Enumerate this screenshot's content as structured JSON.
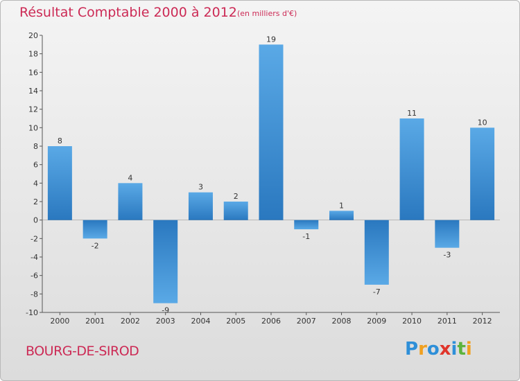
{
  "header": {
    "title": "Résultat Comptable 2000 à 2012",
    "subtitle": "(en milliers d'€)"
  },
  "footer": {
    "location": "BOURG-DE-SIROD",
    "logo_letters": [
      {
        "ch": "P",
        "color": "#2e8fd8"
      },
      {
        "ch": "r",
        "color": "#f0a020"
      },
      {
        "ch": "o",
        "color": "#2e8fd8"
      },
      {
        "ch": "x",
        "color": "#e0352b"
      },
      {
        "ch": "i",
        "color": "#2e8fd8"
      },
      {
        "ch": "t",
        "color": "#5db33c"
      },
      {
        "ch": "i",
        "color": "#f0a020"
      }
    ]
  },
  "colors": {
    "title": "#cc2a55",
    "bar_top": "#5aa9e6",
    "bar_bottom": "#2a78bf"
  },
  "chart_data": {
    "type": "bar",
    "title": "Résultat Comptable 2000 à 2012",
    "subtitle": "(en milliers d'€)",
    "xlabel": "",
    "ylabel": "",
    "categories": [
      "2000",
      "2001",
      "2002",
      "2003",
      "2004",
      "2005",
      "2006",
      "2007",
      "2008",
      "2009",
      "2010",
      "2011",
      "2012"
    ],
    "values": [
      8,
      -2,
      4,
      -9,
      3,
      2,
      19,
      -1,
      1,
      -7,
      11,
      -3,
      10
    ],
    "ylim": [
      -10,
      20
    ],
    "yticks": [
      -10,
      -8,
      -6,
      -4,
      -2,
      0,
      2,
      4,
      6,
      8,
      10,
      12,
      14,
      16,
      18,
      20
    ],
    "grid": false,
    "legend": "none"
  }
}
